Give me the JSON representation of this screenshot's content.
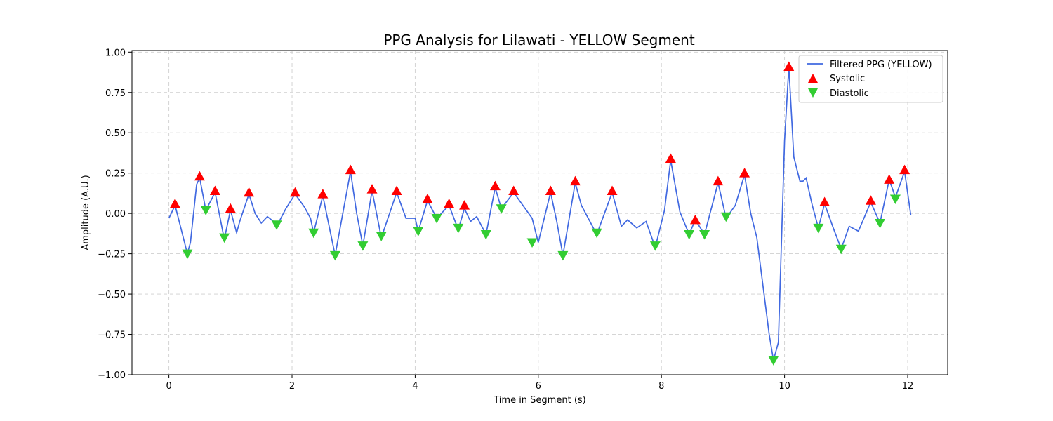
{
  "chart_data": {
    "type": "line",
    "title": "PPG Analysis for Lilawati - YELLOW Segment",
    "xlabel": "Time in Segment (s)",
    "ylabel": "Amplitude (A.U.)",
    "xlim": [
      -0.6,
      12.65
    ],
    "ylim": [
      -1.0,
      1.01
    ],
    "xticks": [
      0,
      2,
      4,
      6,
      8,
      10,
      12
    ],
    "xtick_labels": [
      "0",
      "2",
      "4",
      "6",
      "8",
      "10",
      "12"
    ],
    "yticks": [
      -1.0,
      -0.75,
      -0.5,
      -0.25,
      0.0,
      0.25,
      0.5,
      0.75,
      1.0
    ],
    "ytick_labels": [
      "−1.00",
      "−0.75",
      "−0.50",
      "−0.25",
      "0.00",
      "0.25",
      "0.50",
      "0.75",
      "1.00"
    ],
    "grid": true,
    "legend_position": "top-right",
    "colors": {
      "line": "#4169e1",
      "systolic": "#ff0000",
      "diastolic": "#32cd32"
    },
    "series": [
      {
        "name": "Filtered PPG (YELLOW)",
        "kind": "line",
        "x": [
          0,
          0.1,
          0.2,
          0.3,
          0.35,
          0.45,
          0.5,
          0.6,
          0.75,
          0.9,
          1.0,
          1.1,
          1.15,
          1.3,
          1.4,
          1.5,
          1.6,
          1.7,
          1.75,
          1.9,
          2.05,
          2.2,
          2.3,
          2.35,
          2.5,
          2.7,
          2.8,
          2.95,
          3.05,
          3.15,
          3.3,
          3.45,
          3.7,
          3.85,
          4.0,
          4.05,
          4.2,
          4.35,
          4.55,
          4.7,
          4.8,
          4.9,
          5.0,
          5.15,
          5.3,
          5.4,
          5.6,
          5.9,
          6.0,
          6.2,
          6.3,
          6.4,
          6.6,
          6.7,
          6.95,
          7.2,
          7.35,
          7.45,
          7.6,
          7.75,
          7.9,
          8.05,
          8.15,
          8.3,
          8.45,
          8.55,
          8.7,
          8.92,
          9.05,
          9.2,
          9.35,
          9.45,
          9.55,
          9.65,
          9.75,
          9.82,
          9.9,
          10.0,
          10.07,
          10.15,
          10.25,
          10.3,
          10.35,
          10.45,
          10.55,
          10.65,
          10.8,
          10.92,
          11.05,
          11.2,
          11.4,
          11.55,
          11.7,
          11.8,
          11.95,
          12.05
        ],
        "y": [
          -0.03,
          0.05,
          -0.1,
          -0.25,
          -0.18,
          0.18,
          0.22,
          0.02,
          0.13,
          -0.16,
          0.02,
          -0.12,
          -0.05,
          0.12,
          0.0,
          -0.06,
          -0.02,
          -0.05,
          -0.08,
          0.03,
          0.12,
          0.04,
          -0.03,
          -0.12,
          0.11,
          -0.26,
          -0.05,
          0.26,
          0.0,
          -0.2,
          0.14,
          -0.15,
          0.13,
          -0.03,
          -0.03,
          -0.11,
          0.08,
          -0.03,
          0.05,
          -0.1,
          0.03,
          -0.05,
          -0.02,
          -0.13,
          0.16,
          0.03,
          0.13,
          -0.03,
          -0.18,
          0.13,
          -0.05,
          -0.26,
          0.19,
          0.05,
          -0.13,
          0.13,
          -0.08,
          -0.04,
          -0.09,
          -0.05,
          -0.21,
          0.02,
          0.33,
          0.01,
          -0.13,
          -0.04,
          -0.13,
          0.19,
          -0.03,
          0.05,
          0.24,
          0.0,
          -0.15,
          -0.45,
          -0.75,
          -0.91,
          -0.8,
          0.45,
          0.91,
          0.35,
          0.2,
          0.2,
          0.22,
          0.05,
          -0.09,
          0.06,
          -0.1,
          -0.22,
          -0.08,
          -0.11,
          0.07,
          -0.06,
          0.21,
          0.1,
          0.26,
          -0.01
        ]
      },
      {
        "name": "Systolic",
        "kind": "scatter",
        "marker": "triangle-up",
        "x": [
          0.1,
          0.5,
          0.75,
          1.0,
          1.3,
          2.05,
          2.5,
          2.95,
          3.3,
          3.7,
          4.2,
          4.55,
          4.8,
          5.3,
          5.6,
          6.2,
          6.6,
          7.2,
          8.15,
          8.55,
          8.92,
          9.35,
          10.07,
          10.65,
          11.4,
          11.7,
          11.95
        ],
        "y": [
          0.06,
          0.23,
          0.14,
          0.03,
          0.13,
          0.13,
          0.12,
          0.27,
          0.15,
          0.14,
          0.09,
          0.06,
          0.05,
          0.17,
          0.14,
          0.14,
          0.2,
          0.14,
          0.34,
          -0.04,
          0.2,
          0.25,
          0.91,
          0.07,
          0.08,
          0.21,
          0.27
        ]
      },
      {
        "name": "Diastolic",
        "kind": "scatter",
        "marker": "triangle-down",
        "x": [
          0.3,
          0.6,
          0.9,
          1.75,
          2.35,
          2.7,
          3.15,
          3.45,
          4.05,
          4.35,
          4.7,
          5.15,
          5.4,
          5.9,
          6.4,
          6.95,
          7.9,
          8.45,
          8.7,
          9.05,
          9.82,
          10.55,
          10.92,
          11.55,
          11.8
        ],
        "y": [
          -0.25,
          0.02,
          -0.15,
          -0.07,
          -0.12,
          -0.26,
          -0.2,
          -0.14,
          -0.11,
          -0.03,
          -0.09,
          -0.13,
          0.03,
          -0.18,
          -0.26,
          -0.12,
          -0.2,
          -0.13,
          -0.13,
          -0.02,
          -0.91,
          -0.09,
          -0.22,
          -0.06,
          0.09
        ]
      }
    ]
  }
}
